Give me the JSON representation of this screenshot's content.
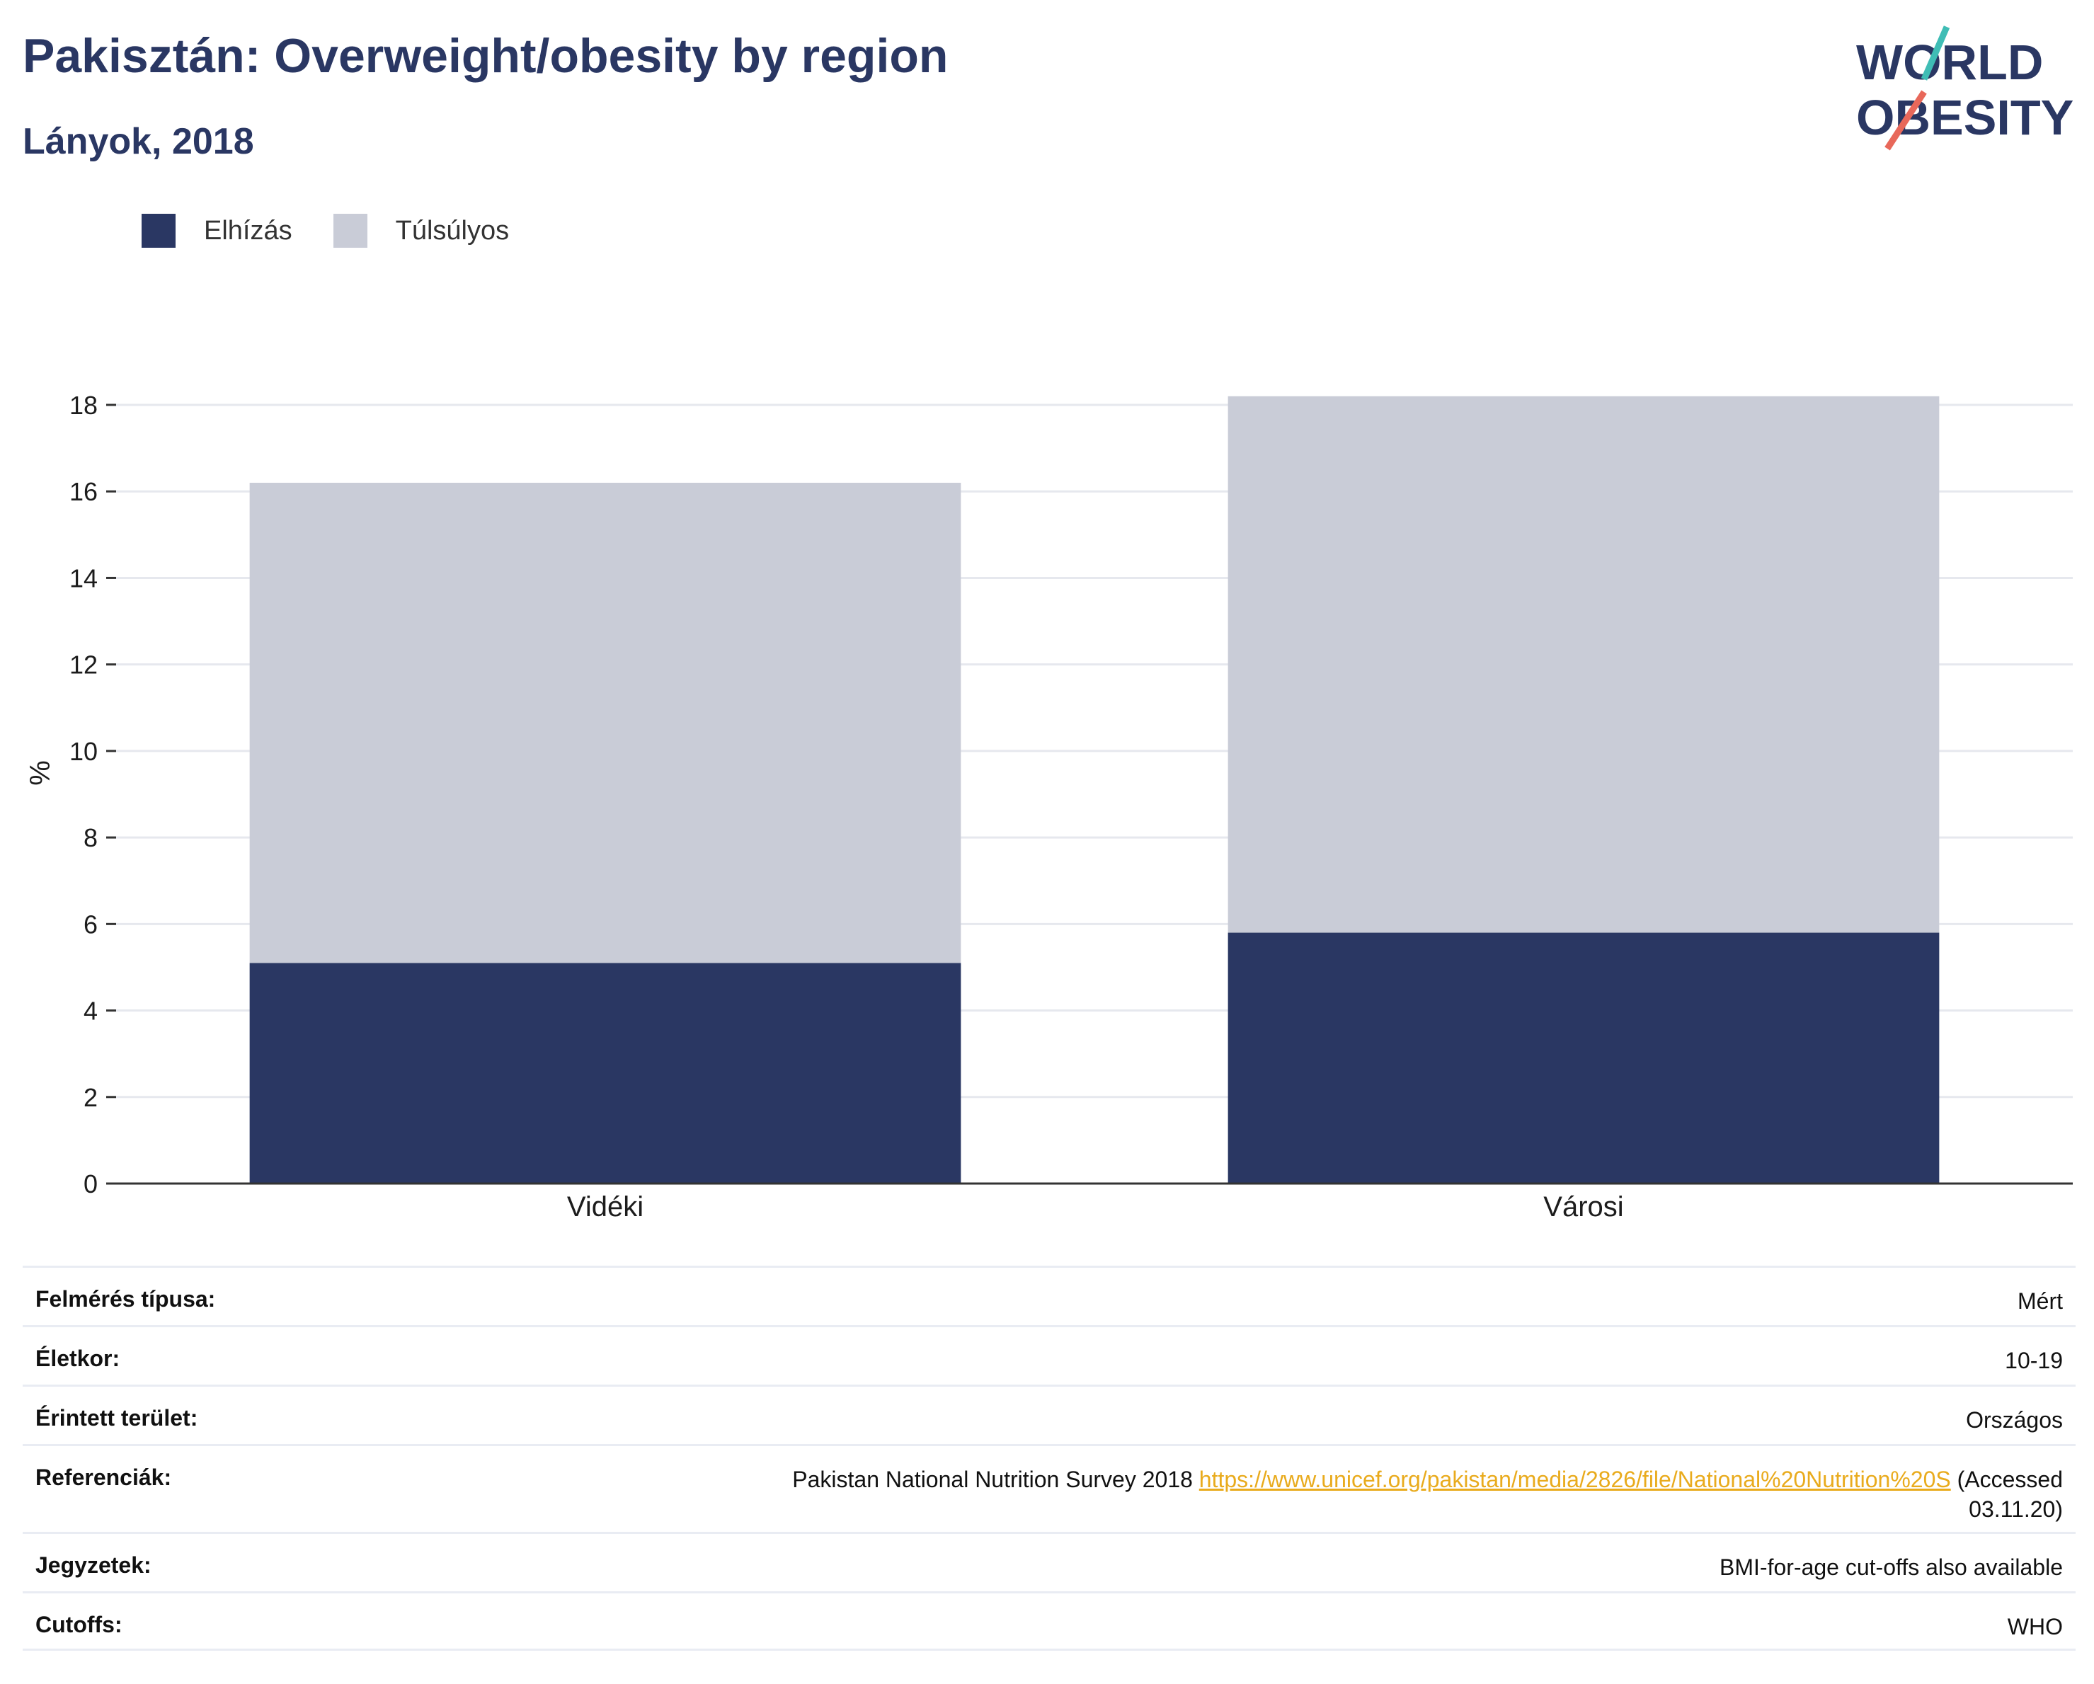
{
  "header": {
    "title": "Pakisztán: Overweight/obesity by region",
    "subtitle": "Lányok, 2018"
  },
  "logo": {
    "line1": "WORLD",
    "line2": "OBESITY",
    "colors": {
      "navy": "#2a3763",
      "teal": "#3fbdb5",
      "coral": "#e8685a"
    }
  },
  "colors": {
    "obesity": "#2a3763",
    "overweight": "#c9ccd7",
    "grid": "#e6e8ee",
    "axis": "#333333"
  },
  "chart_data": {
    "type": "bar",
    "stacked": true,
    "categories": [
      "Vidéki",
      "Városi"
    ],
    "series": [
      {
        "name": "Elhízás",
        "values": [
          5.1,
          5.8
        ]
      },
      {
        "name": "Túlsúlyos",
        "values": [
          11.1,
          12.4
        ]
      }
    ],
    "ylabel": "%",
    "ylim": [
      0,
      18
    ],
    "yticks": [
      "0",
      "2",
      "4",
      "6",
      "8",
      "10",
      "12",
      "14",
      "16",
      "18"
    ],
    "grid": true,
    "legend_position": "top-left"
  },
  "info": {
    "rows": [
      {
        "label": "Felmérés típusa:",
        "value": "Mért"
      },
      {
        "label": "Életkor:",
        "value": "10-19"
      },
      {
        "label": "Érintett terület:",
        "value": "Országos"
      },
      {
        "label": "Referenciák:",
        "value_prefix": "Pakistan National Nutrition Survey 2018 ",
        "link": "https://www.unicef.org/pakistan/media/2826/file/National%20Nutrition%20S",
        "value_suffix": " (Accessed",
        "value_line2": "03.11.20)"
      },
      {
        "label": "Jegyzetek:",
        "value": "BMI-for-age cut-offs also available"
      },
      {
        "label": "Cutoffs:",
        "value": "WHO"
      }
    ]
  }
}
